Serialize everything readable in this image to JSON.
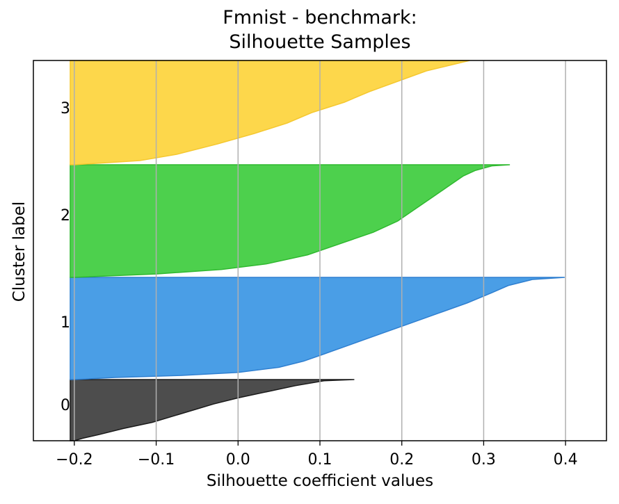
{
  "chart_data": {
    "type": "area",
    "title_lines": [
      "Fmnist - benchmark:",
      "Silhouette Samples"
    ],
    "xlabel": "Silhouette coefficient values",
    "ylabel": "Cluster label",
    "xlim": [
      -0.25,
      0.45
    ],
    "xticks": [
      -0.2,
      -0.1,
      0.0,
      0.1,
      0.2,
      0.3,
      0.4
    ],
    "xtick_labels": [
      "−0.2",
      "−0.1",
      "0.0",
      "0.1",
      "0.2",
      "0.3",
      "0.4"
    ],
    "grid": "vertical",
    "baseline": -0.205,
    "clusters": [
      {
        "label": "0",
        "color": "#4d4d4d",
        "edge": "#1a1a1a",
        "profile": [
          [
            0,
            0.142
          ],
          [
            0.02,
            0.105
          ],
          [
            0.1,
            0.07
          ],
          [
            0.2,
            0.035
          ],
          [
            0.3,
            0.0
          ],
          [
            0.4,
            -0.03
          ],
          [
            0.5,
            -0.055
          ],
          [
            0.6,
            -0.08
          ],
          [
            0.7,
            -0.105
          ],
          [
            0.8,
            -0.14
          ],
          [
            0.9,
            -0.17
          ],
          [
            0.96,
            -0.19
          ],
          [
            1,
            -0.2
          ]
        ]
      },
      {
        "label": "1",
        "color": "#4a9ee6",
        "edge": "#2f7fd0",
        "profile": [
          [
            0,
            0.399
          ],
          [
            0.02,
            0.36
          ],
          [
            0.08,
            0.33
          ],
          [
            0.15,
            0.31
          ],
          [
            0.25,
            0.28
          ],
          [
            0.35,
            0.245
          ],
          [
            0.45,
            0.21
          ],
          [
            0.55,
            0.175
          ],
          [
            0.65,
            0.14
          ],
          [
            0.75,
            0.105
          ],
          [
            0.82,
            0.08
          ],
          [
            0.88,
            0.05
          ],
          [
            0.93,
            0.0
          ],
          [
            0.96,
            -0.07
          ],
          [
            0.98,
            -0.15
          ],
          [
            1,
            -0.2
          ]
        ]
      },
      {
        "label": "2",
        "color": "#4dd04d",
        "edge": "#2fb82f",
        "profile": [
          [
            0,
            0.332
          ],
          [
            0.01,
            0.31
          ],
          [
            0.05,
            0.29
          ],
          [
            0.1,
            0.275
          ],
          [
            0.2,
            0.255
          ],
          [
            0.3,
            0.235
          ],
          [
            0.4,
            0.215
          ],
          [
            0.5,
            0.195
          ],
          [
            0.6,
            0.165
          ],
          [
            0.7,
            0.125
          ],
          [
            0.8,
            0.085
          ],
          [
            0.88,
            0.035
          ],
          [
            0.93,
            -0.02
          ],
          [
            0.97,
            -0.1
          ],
          [
            1,
            -0.2
          ]
        ]
      },
      {
        "label": "3",
        "color": "#fdd74b",
        "edge": "#f5c830",
        "profile": [
          [
            0,
            0.283
          ],
          [
            0.1,
            0.23
          ],
          [
            0.2,
            0.195
          ],
          [
            0.3,
            0.16
          ],
          [
            0.4,
            0.13
          ],
          [
            0.5,
            0.09
          ],
          [
            0.6,
            0.06
          ],
          [
            0.7,
            0.02
          ],
          [
            0.8,
            -0.025
          ],
          [
            0.9,
            -0.075
          ],
          [
            0.96,
            -0.12
          ],
          [
            1,
            -0.2
          ]
        ]
      }
    ]
  }
}
